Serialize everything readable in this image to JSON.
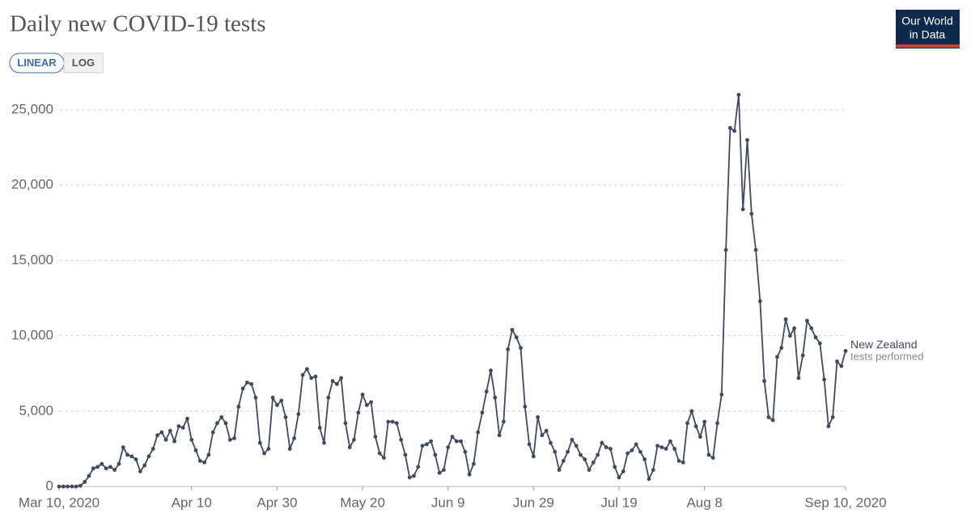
{
  "chart_data": {
    "type": "line",
    "title": "Daily new COVID-19 tests",
    "logo": [
      "Our World",
      "in Data"
    ],
    "scale_buttons": [
      "LINEAR",
      "LOG"
    ],
    "active_scale": 0,
    "series_note": "tests performed",
    "grid": true,
    "xlim": [
      "2020-03-10",
      "2020-09-10"
    ],
    "ylim": [
      0,
      26500
    ],
    "xticks": [
      {
        "value": "2020-03-10",
        "label": "Mar 10, 2020"
      },
      {
        "value": "2020-04-10",
        "label": "Apr 10"
      },
      {
        "value": "2020-04-30",
        "label": "Apr 30"
      },
      {
        "value": "2020-05-20",
        "label": "May 20"
      },
      {
        "value": "2020-06-09",
        "label": "Jun 9"
      },
      {
        "value": "2020-06-29",
        "label": "Jun 29"
      },
      {
        "value": "2020-07-19",
        "label": "Jul 19"
      },
      {
        "value": "2020-08-08",
        "label": "Aug 8"
      },
      {
        "value": "2020-09-10",
        "label": "Sep 10, 2020"
      }
    ],
    "yticks": [
      0,
      {
        "value": 5000,
        "label": "5,000"
      },
      {
        "value": 10000,
        "label": "10,000"
      },
      {
        "value": 15000,
        "label": "15,000"
      },
      {
        "value": 20000,
        "label": "20,000"
      },
      {
        "value": 25000,
        "label": "25,000"
      }
    ],
    "x": [
      "2020-03-10",
      "2020-03-11",
      "2020-03-12",
      "2020-03-13",
      "2020-03-14",
      "2020-03-15",
      "2020-03-16",
      "2020-03-17",
      "2020-03-18",
      "2020-03-19",
      "2020-03-20",
      "2020-03-21",
      "2020-03-22",
      "2020-03-23",
      "2020-03-24",
      "2020-03-25",
      "2020-03-26",
      "2020-03-27",
      "2020-03-28",
      "2020-03-29",
      "2020-03-30",
      "2020-03-31",
      "2020-04-01",
      "2020-04-02",
      "2020-04-03",
      "2020-04-04",
      "2020-04-05",
      "2020-04-06",
      "2020-04-07",
      "2020-04-08",
      "2020-04-09",
      "2020-04-10",
      "2020-04-11",
      "2020-04-12",
      "2020-04-13",
      "2020-04-14",
      "2020-04-15",
      "2020-04-16",
      "2020-04-17",
      "2020-04-18",
      "2020-04-19",
      "2020-04-20",
      "2020-04-21",
      "2020-04-22",
      "2020-04-23",
      "2020-04-24",
      "2020-04-25",
      "2020-04-26",
      "2020-04-27",
      "2020-04-28",
      "2020-04-29",
      "2020-04-30",
      "2020-05-01",
      "2020-05-02",
      "2020-05-03",
      "2020-05-04",
      "2020-05-05",
      "2020-05-06",
      "2020-05-07",
      "2020-05-08",
      "2020-05-09",
      "2020-05-10",
      "2020-05-11",
      "2020-05-12",
      "2020-05-13",
      "2020-05-14",
      "2020-05-15",
      "2020-05-16",
      "2020-05-17",
      "2020-05-18",
      "2020-05-19",
      "2020-05-20",
      "2020-05-21",
      "2020-05-22",
      "2020-05-23",
      "2020-05-24",
      "2020-05-25",
      "2020-05-26",
      "2020-05-27",
      "2020-05-28",
      "2020-05-29",
      "2020-05-30",
      "2020-05-31",
      "2020-06-01",
      "2020-06-02",
      "2020-06-03",
      "2020-06-04",
      "2020-06-05",
      "2020-06-06",
      "2020-06-07",
      "2020-06-08",
      "2020-06-09",
      "2020-06-10",
      "2020-06-11",
      "2020-06-12",
      "2020-06-13",
      "2020-06-14",
      "2020-06-15",
      "2020-06-16",
      "2020-06-17",
      "2020-06-18",
      "2020-06-19",
      "2020-06-20",
      "2020-06-21",
      "2020-06-22",
      "2020-06-23",
      "2020-06-24",
      "2020-06-25",
      "2020-06-26",
      "2020-06-27",
      "2020-06-28",
      "2020-06-29",
      "2020-06-30",
      "2020-07-01",
      "2020-07-02",
      "2020-07-03",
      "2020-07-04",
      "2020-07-05",
      "2020-07-06",
      "2020-07-07",
      "2020-07-08",
      "2020-07-09",
      "2020-07-10",
      "2020-07-11",
      "2020-07-12",
      "2020-07-13",
      "2020-07-14",
      "2020-07-15",
      "2020-07-16",
      "2020-07-17",
      "2020-07-18",
      "2020-07-19",
      "2020-07-20",
      "2020-07-21",
      "2020-07-22",
      "2020-07-23",
      "2020-07-24",
      "2020-07-25",
      "2020-07-26",
      "2020-07-27",
      "2020-07-28",
      "2020-07-29",
      "2020-07-30",
      "2020-07-31",
      "2020-08-01",
      "2020-08-02",
      "2020-08-03",
      "2020-08-04",
      "2020-08-05",
      "2020-08-06",
      "2020-08-07",
      "2020-08-08",
      "2020-08-09",
      "2020-08-10",
      "2020-08-11",
      "2020-08-12",
      "2020-08-13",
      "2020-08-14",
      "2020-08-15",
      "2020-08-16",
      "2020-08-17",
      "2020-08-18",
      "2020-08-19",
      "2020-08-20",
      "2020-08-21",
      "2020-08-22",
      "2020-08-23",
      "2020-08-24",
      "2020-08-25",
      "2020-08-26",
      "2020-08-27",
      "2020-08-28",
      "2020-08-29",
      "2020-08-30",
      "2020-08-31",
      "2020-09-01",
      "2020-09-02",
      "2020-09-03",
      "2020-09-04",
      "2020-09-05",
      "2020-09-06",
      "2020-09-07",
      "2020-09-08",
      "2020-09-09",
      "2020-09-10"
    ],
    "series": [
      {
        "name": "New Zealand",
        "color": "#3f4a61",
        "values": [
          0,
          0,
          0,
          0,
          0,
          50,
          300,
          700,
          1200,
          1300,
          1500,
          1200,
          1300,
          1100,
          1500,
          2600,
          2100,
          2000,
          1800,
          1000,
          1400,
          2000,
          2500,
          3400,
          3600,
          3100,
          3700,
          3000,
          4000,
          3900,
          4500,
          3100,
          2400,
          1700,
          1600,
          2100,
          3600,
          4200,
          4600,
          4200,
          3100,
          3200,
          5300,
          6500,
          6900,
          6800,
          5900,
          2900,
          2200,
          2500,
          5900,
          5400,
          5700,
          4600,
          2500,
          3200,
          4800,
          7400,
          7800,
          7200,
          7300,
          3900,
          2900,
          5900,
          7000,
          6800,
          7200,
          4200,
          2600,
          3100,
          4900,
          6100,
          5400,
          5600,
          3300,
          2200,
          1900,
          4300,
          4300,
          4200,
          3100,
          2100,
          600,
          700,
          1300,
          2700,
          2800,
          3000,
          2100,
          900,
          1100,
          2600,
          3300,
          3000,
          3000,
          2300,
          800,
          1500,
          3600,
          4900,
          6300,
          7700,
          5900,
          3400,
          4300,
          9100,
          10400,
          9900,
          9200,
          5300,
          2800,
          2000,
          4600,
          3400,
          3700,
          2900,
          2300,
          1100,
          1700,
          2300,
          3100,
          2700,
          2100,
          1800,
          1100,
          1600,
          2100,
          2900,
          2600,
          2500,
          1300,
          600,
          1000,
          2200,
          2400,
          2800,
          2300,
          1800,
          500,
          1100,
          2700,
          2600,
          2500,
          3000,
          2500,
          1700,
          1600,
          4200,
          5000,
          4000,
          3300,
          4300,
          2100,
          1900,
          4200,
          6100,
          15700,
          23800,
          23600,
          26000,
          18400,
          23000,
          18100,
          15700,
          12300,
          7000,
          4600,
          4400,
          8600,
          9200,
          11100,
          10000,
          10500,
          7200,
          8700,
          11000,
          10500,
          9900,
          9500,
          7100,
          4000,
          4600,
          8300,
          8000,
          9000
        ]
      }
    ]
  }
}
